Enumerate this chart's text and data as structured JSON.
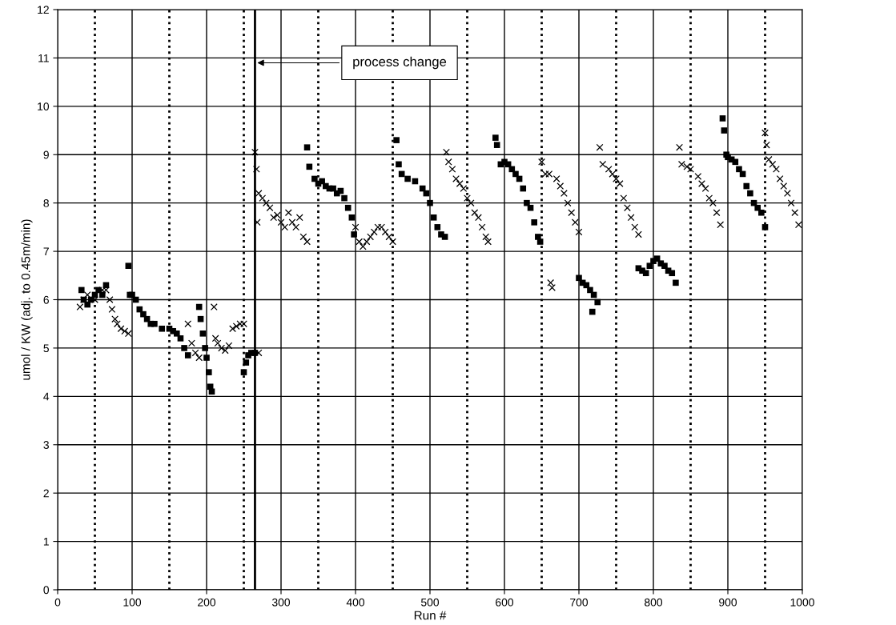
{
  "chart_data": {
    "type": "scatter",
    "xlabel": "Run #",
    "ylabel": "umol / KW (adj. to 0.45m/min)",
    "xlim": [
      0,
      1000
    ],
    "xticks": [
      0,
      100,
      200,
      300,
      400,
      500,
      600,
      700,
      800,
      900,
      1000
    ],
    "ylim": [
      0,
      12
    ],
    "yticks": [
      0,
      1,
      2,
      3,
      4,
      5,
      6,
      7,
      8,
      9,
      10,
      11,
      12
    ],
    "grid": true,
    "legend": false,
    "series": [
      {
        "color": "#000000",
        "marker": "square",
        "x": [
          32,
          35,
          40,
          45,
          50,
          55,
          60,
          65,
          95,
          97,
          100,
          105,
          110,
          115,
          120,
          125,
          130,
          140,
          150,
          155,
          160,
          165,
          170,
          175,
          190,
          192,
          195,
          198,
          200,
          203,
          205,
          207,
          250,
          253,
          256,
          260,
          265,
          335,
          338,
          345,
          350,
          355,
          360,
          365,
          370,
          375,
          380,
          385,
          390,
          395,
          398,
          455,
          458,
          462,
          470,
          480,
          490,
          495,
          500,
          505,
          510,
          515,
          520,
          588,
          590,
          595,
          600,
          605,
          610,
          615,
          620,
          625,
          630,
          635,
          640,
          645,
          648,
          700,
          705,
          710,
          715,
          718,
          720,
          725,
          780,
          785,
          790,
          795,
          800,
          805,
          810,
          815,
          820,
          825,
          830,
          893,
          895,
          898,
          900,
          905,
          910,
          915,
          920,
          925,
          930,
          935,
          940,
          945,
          950
        ],
        "values": [
          6.2,
          6.0,
          5.9,
          6.0,
          6.1,
          6.2,
          6.1,
          6.3,
          6.7,
          6.1,
          6.1,
          6.0,
          5.8,
          5.7,
          5.6,
          5.5,
          5.5,
          5.4,
          5.4,
          5.35,
          5.3,
          5.2,
          5.0,
          4.85,
          5.85,
          5.6,
          5.3,
          5.0,
          4.8,
          4.5,
          4.2,
          4.1,
          4.5,
          4.7,
          4.85,
          4.9,
          4.9,
          9.15,
          8.75,
          8.5,
          8.4,
          8.45,
          8.35,
          8.3,
          8.3,
          8.2,
          8.25,
          8.1,
          7.9,
          7.7,
          7.35,
          9.3,
          8.8,
          8.6,
          8.5,
          8.45,
          8.3,
          8.2,
          8.0,
          7.7,
          7.5,
          7.35,
          7.3,
          9.35,
          9.2,
          8.8,
          8.85,
          8.8,
          8.7,
          8.6,
          8.5,
          8.3,
          8.0,
          7.9,
          7.6,
          7.3,
          7.2,
          6.45,
          6.35,
          6.3,
          6.2,
          5.75,
          6.1,
          5.95,
          6.65,
          6.6,
          6.55,
          6.7,
          6.8,
          6.85,
          6.75,
          6.7,
          6.6,
          6.55,
          6.35,
          9.75,
          9.5,
          9.0,
          8.95,
          8.9,
          8.85,
          8.7,
          8.6,
          8.35,
          8.2,
          8.0,
          7.9,
          7.8,
          7.5
        ]
      },
      {
        "color": "#000000",
        "marker": "cross",
        "x": [
          30,
          35,
          40,
          50,
          60,
          65,
          70,
          73,
          77,
          80,
          85,
          90,
          95,
          175,
          180,
          185,
          190,
          210,
          212,
          215,
          220,
          225,
          230,
          235,
          240,
          245,
          250,
          270,
          265,
          267,
          268,
          270,
          275,
          280,
          285,
          290,
          295,
          300,
          305,
          310,
          315,
          320,
          325,
          330,
          335,
          400,
          405,
          410,
          415,
          420,
          425,
          430,
          435,
          440,
          445,
          450,
          522,
          525,
          530,
          535,
          540,
          545,
          550,
          555,
          560,
          565,
          570,
          575,
          578,
          650,
          655,
          660,
          662,
          664,
          670,
          675,
          680,
          685,
          690,
          695,
          700,
          728,
          732,
          740,
          745,
          750,
          755,
          760,
          765,
          770,
          775,
          780,
          835,
          838,
          845,
          850,
          860,
          865,
          870,
          875,
          880,
          885,
          890,
          950,
          952,
          955,
          960,
          965,
          970,
          975,
          980,
          985,
          990,
          995
        ],
        "values": [
          5.85,
          6.0,
          6.1,
          6.0,
          6.2,
          6.2,
          6.0,
          5.8,
          5.6,
          5.5,
          5.4,
          5.35,
          5.3,
          5.5,
          5.1,
          4.9,
          4.8,
          5.85,
          5.2,
          5.1,
          5.0,
          4.95,
          5.05,
          5.4,
          5.45,
          5.5,
          5.5,
          4.9,
          9.05,
          8.7,
          7.6,
          8.2,
          8.1,
          8.0,
          7.9,
          7.7,
          7.75,
          7.6,
          7.5,
          7.8,
          7.6,
          7.5,
          7.7,
          7.3,
          7.2,
          7.5,
          7.2,
          7.1,
          7.2,
          7.3,
          7.4,
          7.5,
          7.5,
          7.4,
          7.3,
          7.2,
          9.05,
          8.85,
          8.7,
          8.5,
          8.4,
          8.3,
          8.1,
          8.0,
          7.8,
          7.7,
          7.5,
          7.3,
          7.2,
          8.85,
          8.6,
          8.6,
          6.35,
          6.25,
          8.5,
          8.35,
          8.2,
          8.0,
          7.8,
          7.6,
          7.4,
          9.15,
          8.8,
          8.7,
          8.6,
          8.5,
          8.4,
          8.1,
          7.9,
          7.7,
          7.5,
          7.35,
          9.15,
          8.8,
          8.75,
          8.7,
          8.55,
          8.4,
          8.3,
          8.1,
          8.0,
          7.8,
          7.55,
          9.45,
          9.2,
          8.9,
          8.8,
          8.7,
          8.5,
          8.35,
          8.2,
          8.0,
          7.8,
          7.55
        ]
      }
    ],
    "ref_lines": [
      {
        "axis": "x",
        "value": 50,
        "line_style": "dotted",
        "color": "#000000"
      },
      {
        "axis": "x",
        "value": 150,
        "line_style": "dotted",
        "color": "#000000"
      },
      {
        "axis": "x",
        "value": 250,
        "line_style": "dotted",
        "color": "#000000"
      },
      {
        "axis": "x",
        "value": 350,
        "line_style": "dotted",
        "color": "#000000"
      },
      {
        "axis": "x",
        "value": 450,
        "line_style": "dotted",
        "color": "#000000"
      },
      {
        "axis": "x",
        "value": 550,
        "line_style": "dotted",
        "color": "#000000"
      },
      {
        "axis": "x",
        "value": 650,
        "line_style": "dotted",
        "color": "#000000"
      },
      {
        "axis": "x",
        "value": 750,
        "line_style": "dotted",
        "color": "#000000"
      },
      {
        "axis": "x",
        "value": 850,
        "line_style": "dotted",
        "color": "#000000"
      },
      {
        "axis": "x",
        "value": 950,
        "line_style": "dotted",
        "color": "#000000"
      },
      {
        "axis": "x",
        "value": 265,
        "line_style": "solid",
        "color": "#000000",
        "label": "process change"
      }
    ]
  }
}
